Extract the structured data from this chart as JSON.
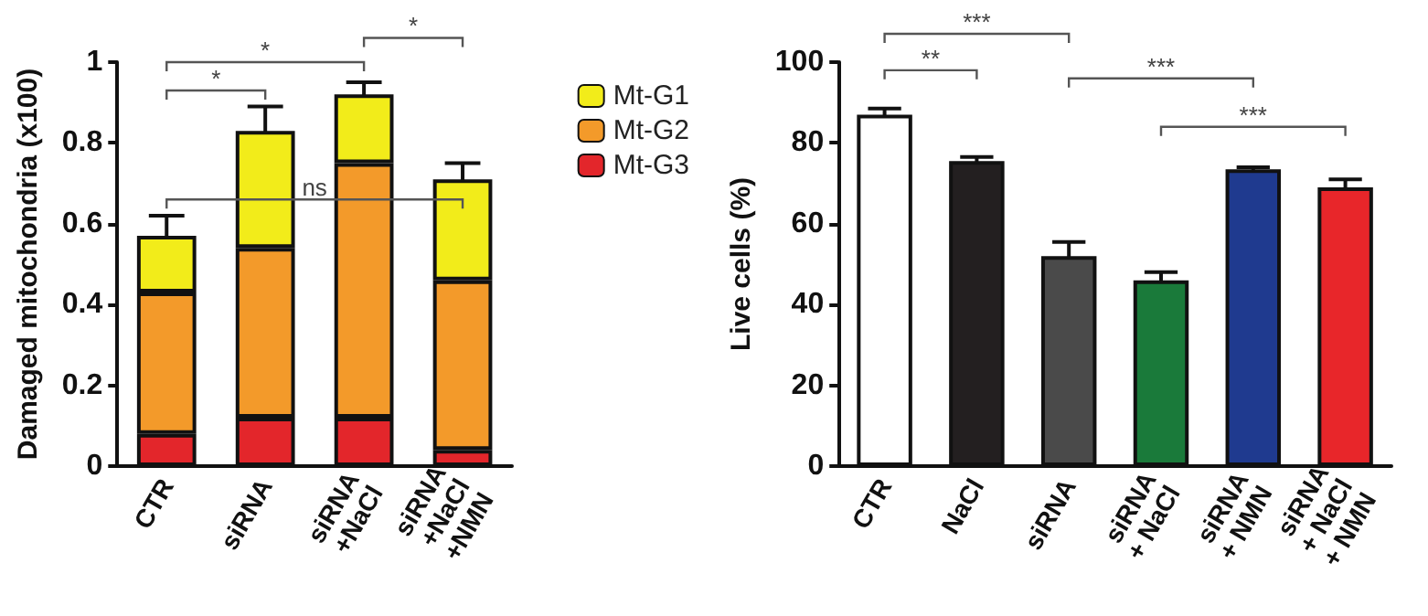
{
  "chart_data": [
    {
      "type": "bar",
      "ylabel": "Damaged mitochondria (x100)",
      "categories": [
        "CTR",
        "siRNA",
        "siRNA\n+NaCl",
        "siRNA\n+NaCl\n+NMN"
      ],
      "stacked": true,
      "ylim": [
        0,
        1
      ],
      "yticks": [
        0,
        0.2,
        0.4,
        0.6,
        0.8,
        1
      ],
      "legend": "right",
      "grid": false,
      "series": [
        {
          "name": "Mt-G3",
          "color": "#e3262b",
          "values": [
            0.08,
            0.12,
            0.12,
            0.04
          ]
        },
        {
          "name": "Mt-G2",
          "color": "#f39a2a",
          "values": [
            0.35,
            0.42,
            0.63,
            0.42
          ]
        },
        {
          "name": "Mt-G1",
          "color": "#f2ec1a",
          "values": [
            0.14,
            0.29,
            0.17,
            0.25
          ],
          "errors": [
            0.05,
            0.06,
            0.03,
            0.04
          ]
        }
      ],
      "annotations": [
        "*",
        "*",
        "*",
        "ns"
      ]
    },
    {
      "type": "bar",
      "ylabel": "Live cells (%)",
      "categories": [
        "CTR",
        "NaCl",
        "siRNA",
        "siRNA\n+ NaCl",
        "siRNA\n+ NMN",
        "siRNA\n+ NaCl\n+ NMN"
      ],
      "ylim": [
        0,
        100
      ],
      "yticks": [
        0,
        20,
        40,
        60,
        80,
        100
      ],
      "grid": false,
      "legend": false,
      "values": [
        87,
        75.5,
        52,
        46,
        73.5,
        69
      ],
      "colors": [
        "#ffffff",
        "#231f20",
        "#4a4a4a",
        "#1a7a3a",
        "#1f3a8f",
        "#e8262a"
      ],
      "errors": [
        1.5,
        1,
        3.5,
        2,
        0.5,
        2
      ],
      "annotations": [
        "***",
        "**",
        "***",
        "***"
      ]
    }
  ]
}
